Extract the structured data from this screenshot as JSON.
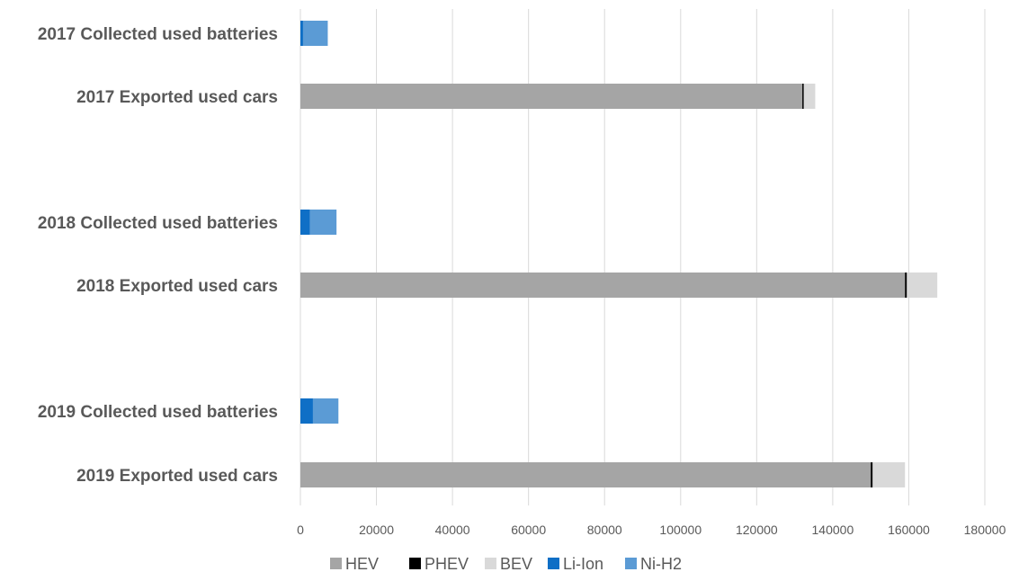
{
  "chart_data": {
    "type": "bar",
    "orientation": "horizontal",
    "stacked": true,
    "title": "",
    "xlabel": "",
    "ylabel": "",
    "xlim": [
      0,
      180000
    ],
    "x_ticks": [
      0,
      20000,
      40000,
      60000,
      80000,
      100000,
      120000,
      140000,
      160000,
      180000
    ],
    "grid": "vertical",
    "legend_position": "bottom",
    "categories": [
      "2017 Collected used batteries",
      "2017 Exported used cars",
      "2018 Collected used batteries",
      "2018 Exported used cars",
      "2019 Collected used batteries",
      "2019 Exported used cars"
    ],
    "series": [
      {
        "name": "HEV",
        "color": "#a5a5a5",
        "values": [
          0,
          132000,
          0,
          159000,
          0,
          150000
        ]
      },
      {
        "name": "PHEV",
        "color": "#000000",
        "values": [
          0,
          400,
          0,
          500,
          0,
          500
        ]
      },
      {
        "name": "BEV",
        "color": "#d9d9d9",
        "values": [
          0,
          3000,
          0,
          8000,
          0,
          8500
        ]
      },
      {
        "name": "Li-Ion",
        "color": "#0f6fc6",
        "values": [
          700,
          0,
          2500,
          0,
          3300,
          0
        ]
      },
      {
        "name": "Ni-H2",
        "color": "#5b9bd5",
        "values": [
          6500,
          0,
          7000,
          0,
          6700,
          0
        ]
      }
    ]
  }
}
